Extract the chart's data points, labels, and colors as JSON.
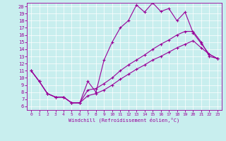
{
  "xlabel": "Windchill (Refroidissement éolien,°C)",
  "xlim": [
    -0.5,
    23.5
  ],
  "ylim": [
    5.5,
    20.5
  ],
  "yticks": [
    6,
    7,
    8,
    9,
    10,
    11,
    12,
    13,
    14,
    15,
    16,
    17,
    18,
    19,
    20
  ],
  "xticks": [
    0,
    1,
    2,
    3,
    4,
    5,
    6,
    7,
    8,
    9,
    10,
    11,
    12,
    13,
    14,
    15,
    16,
    17,
    18,
    19,
    20,
    21,
    22,
    23
  ],
  "bg_color": "#c8eeee",
  "line_color": "#990099",
  "line1_x": [
    0,
    1,
    2,
    3,
    4,
    5,
    6,
    7,
    8,
    9,
    10,
    11,
    12,
    13,
    14,
    15,
    16,
    17,
    18,
    19,
    20,
    21,
    22,
    23
  ],
  "line1_y": [
    11,
    9.5,
    7.8,
    7.3,
    7.3,
    6.5,
    6.5,
    9.5,
    8.0,
    12.5,
    15.0,
    17.0,
    18.0,
    20.2,
    19.2,
    20.5,
    19.3,
    19.7,
    18.0,
    19.2,
    16.3,
    14.8,
    13.3,
    12.7
  ],
  "line2_x": [
    0,
    1,
    2,
    3,
    4,
    5,
    6,
    7,
    8,
    9,
    10,
    11,
    12,
    13,
    14,
    15,
    16,
    17,
    18,
    19,
    20,
    21,
    22,
    23
  ],
  "line2_y": [
    11,
    9.5,
    7.8,
    7.3,
    7.3,
    6.5,
    6.5,
    8.3,
    8.5,
    9.2,
    10.0,
    11.0,
    11.8,
    12.5,
    13.2,
    14.0,
    14.7,
    15.3,
    16.0,
    16.5,
    16.5,
    15.0,
    13.0,
    12.7
  ],
  "line3_x": [
    0,
    1,
    2,
    3,
    4,
    5,
    6,
    7,
    8,
    9,
    10,
    11,
    12,
    13,
    14,
    15,
    16,
    17,
    18,
    19,
    20,
    21,
    22,
    23
  ],
  "line3_y": [
    11,
    9.5,
    7.8,
    7.3,
    7.3,
    6.5,
    6.5,
    7.5,
    7.8,
    8.3,
    9.0,
    9.8,
    10.5,
    11.2,
    11.8,
    12.5,
    13.0,
    13.6,
    14.2,
    14.7,
    15.2,
    14.2,
    13.3,
    12.7
  ]
}
